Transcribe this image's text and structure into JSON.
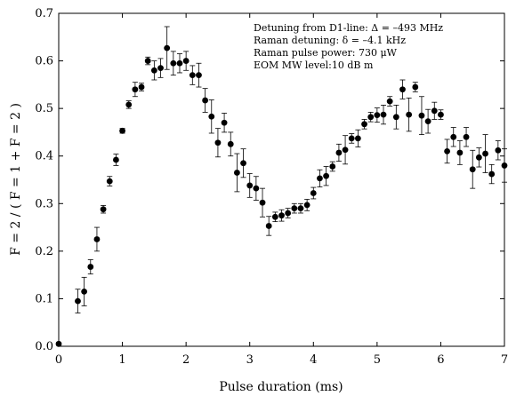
{
  "chart_data": {
    "type": "scatter",
    "title": "",
    "xlabel": "Pulse duration (ms)",
    "ylabel": "F = 2 / ( F = 1 + F = 2 )",
    "xlim": [
      0,
      7
    ],
    "ylim": [
      0,
      0.7
    ],
    "x_ticks": [
      "0",
      "1",
      "2",
      "3",
      "4",
      "5",
      "6",
      "7"
    ],
    "y_ticks": [
      "0.0",
      "0.1",
      "0.2",
      "0.3",
      "0.4",
      "0.5",
      "0.6",
      "0.7"
    ],
    "grid": false,
    "legend": "none",
    "marker_color": "#000000",
    "annotations": [
      "Detuning from D1-line: Δ = –493 MHz",
      "Raman detuning: δ = –4.1 kHz",
      "Raman pulse power: 730 μW",
      "EOM MW level:10 dB  m"
    ],
    "series": [
      {
        "x": [
          0.0,
          0.3,
          0.4,
          0.5,
          0.6,
          0.7,
          0.8,
          0.9,
          1.0,
          1.1,
          1.2,
          1.3,
          1.4,
          1.5,
          1.6,
          1.7,
          1.8,
          1.9,
          2.0,
          2.1,
          2.2,
          2.3,
          2.4,
          2.5,
          2.6,
          2.7,
          2.8,
          2.9,
          3.0,
          3.1,
          3.2,
          3.3,
          3.4,
          3.5,
          3.6,
          3.7,
          3.8,
          3.9,
          4.0,
          4.1,
          4.2,
          4.3,
          4.4,
          4.5,
          4.6,
          4.7,
          4.8,
          4.9,
          5.0,
          5.1,
          5.2,
          5.3,
          5.4,
          5.5,
          5.6,
          5.7,
          5.8,
          5.9,
          6.0,
          6.1,
          6.2,
          6.3,
          6.4,
          6.5,
          6.6,
          6.7,
          6.8,
          6.9,
          7.0
        ],
        "y": [
          0.005,
          0.095,
          0.115,
          0.167,
          0.225,
          0.288,
          0.347,
          0.392,
          0.453,
          0.508,
          0.54,
          0.545,
          0.6,
          0.58,
          0.585,
          0.627,
          0.595,
          0.595,
          0.6,
          0.57,
          0.57,
          0.517,
          0.483,
          0.428,
          0.47,
          0.425,
          0.365,
          0.385,
          0.338,
          0.332,
          0.302,
          0.253,
          0.272,
          0.275,
          0.28,
          0.29,
          0.29,
          0.297,
          0.322,
          0.353,
          0.358,
          0.378,
          0.407,
          0.413,
          0.437,
          0.437,
          0.467,
          0.482,
          0.486,
          0.487,
          0.515,
          0.482,
          0.54,
          0.487,
          0.545,
          0.485,
          0.473,
          0.495,
          0.487,
          0.41,
          0.44,
          0.407,
          0.44,
          0.372,
          0.397,
          0.405,
          0.362,
          0.412,
          0.38
        ],
        "err": [
          0.003,
          0.025,
          0.03,
          0.015,
          0.025,
          0.008,
          0.01,
          0.012,
          0.005,
          0.008,
          0.015,
          0.008,
          0.008,
          0.02,
          0.02,
          0.045,
          0.025,
          0.02,
          0.02,
          0.02,
          0.025,
          0.025,
          0.035,
          0.03,
          0.02,
          0.025,
          0.04,
          0.03,
          0.025,
          0.025,
          0.03,
          0.02,
          0.01,
          0.012,
          0.01,
          0.01,
          0.01,
          0.012,
          0.012,
          0.018,
          0.02,
          0.01,
          0.018,
          0.03,
          0.01,
          0.018,
          0.01,
          0.01,
          0.015,
          0.02,
          0.01,
          0.025,
          0.02,
          0.035,
          0.01,
          0.04,
          0.025,
          0.018,
          0.01,
          0.025,
          0.02,
          0.025,
          0.02,
          0.04,
          0.02,
          0.04,
          0.02,
          0.02,
          0.035
        ]
      }
    ]
  }
}
